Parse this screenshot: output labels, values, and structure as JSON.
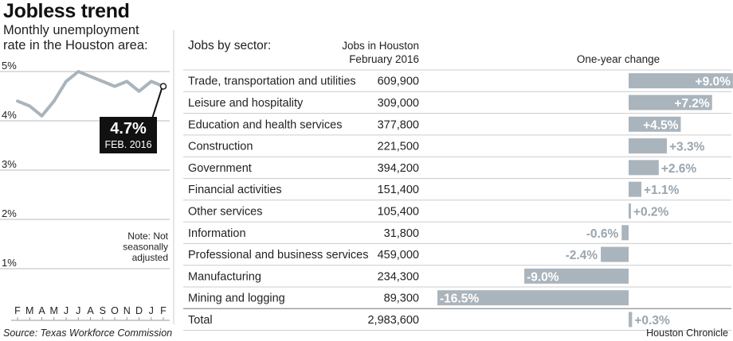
{
  "title": "Jobless trend",
  "subtitle_lines": [
    "Monthly unemployment",
    "rate in the Houston area:"
  ],
  "source": "Source: Texas Workforce Commission",
  "credit": "Houston Chronicle",
  "colors": {
    "line": "#aab4bc",
    "bar": "#aab4bc",
    "callout": "#111111",
    "rule": "#999999"
  },
  "chart_data": [
    {
      "type": "line",
      "series": [
        {
          "values": [
            4.4,
            4.3,
            4.1,
            4.4,
            4.8,
            5.0,
            4.9,
            4.8,
            4.7,
            4.8,
            4.6,
            4.8,
            4.7
          ]
        }
      ],
      "x": [
        "F",
        "M",
        "A",
        "M",
        "J",
        "J",
        "A",
        "S",
        "O",
        "N",
        "D",
        "J",
        "F"
      ],
      "y_ticks": [
        "5%",
        "4%",
        "3%",
        "2%",
        "1%"
      ],
      "ylim": [
        0,
        5
      ],
      "callout": {
        "value": "4.7%",
        "label": "FEB. 2016"
      },
      "note": "Note: Not seasonally adjusted",
      "grid": true
    },
    {
      "type": "bar",
      "header_sector": "Jobs by sector:",
      "header_jobs_lines": [
        "Jobs in Houston",
        "February 2016"
      ],
      "header_change": "One-year change",
      "categories": [
        "Trade, transportation and utilities",
        "Leisure and hospitality",
        "Education and health services",
        "Construction",
        "Government",
        "Financial activities",
        "Other services",
        "Information",
        "Professional and business services",
        "Manufacturing",
        "Mining and logging",
        "Total"
      ],
      "jobs": [
        "609,900",
        "309,000",
        "377,800",
        "221,500",
        "394,200",
        "151,400",
        "105,400",
        "31,800",
        "459,000",
        "234,300",
        "89,300",
        "2,983,600"
      ],
      "values": [
        9.0,
        7.2,
        4.5,
        3.3,
        2.6,
        1.1,
        0.2,
        -0.6,
        -2.4,
        -9.0,
        -16.5,
        0.3
      ],
      "labels": [
        "+9.0%",
        "+7.2%",
        "+4.5%",
        "+3.3%",
        "+2.6%",
        "+1.1%",
        "+0.2%",
        "-0.6%",
        "-2.4%",
        "-9.0%",
        "-16.5%",
        "+0.3%"
      ]
    }
  ]
}
